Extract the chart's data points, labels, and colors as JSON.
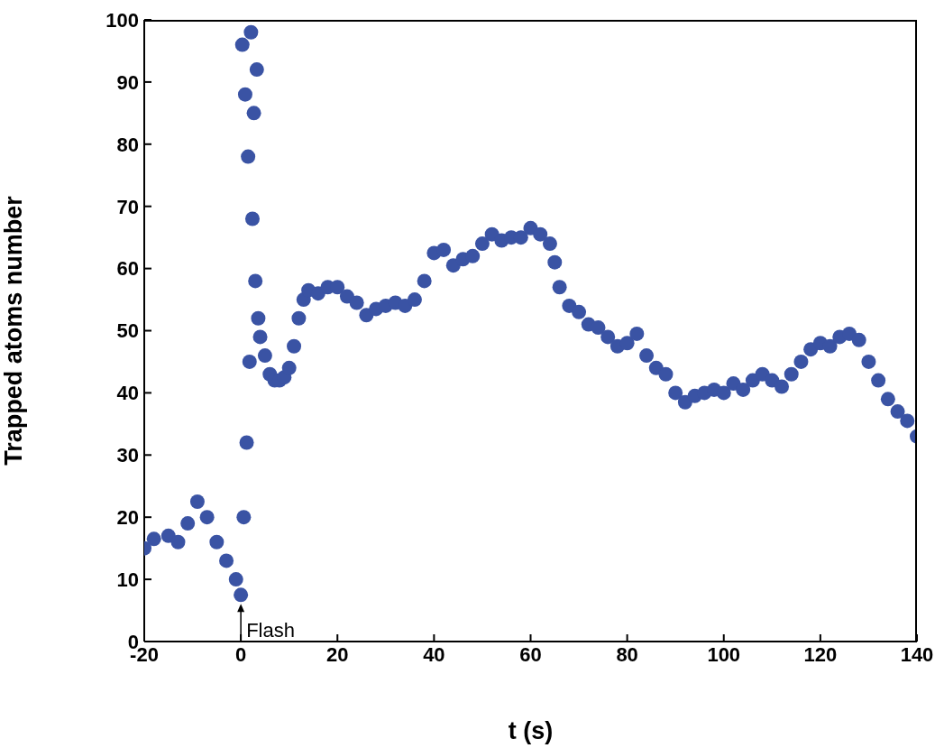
{
  "chart_data": {
    "type": "scatter",
    "xlabel": "t (s)",
    "ylabel": "Trapped atoms number",
    "xlim": [
      -20,
      140
    ],
    "xticks": [
      -20,
      0,
      20,
      40,
      60,
      80,
      100,
      120,
      140
    ],
    "ylim": [
      0,
      100
    ],
    "yticks": [
      0,
      10,
      20,
      30,
      40,
      50,
      60,
      70,
      80,
      90,
      100
    ],
    "marker": "circle",
    "grid": false,
    "legend": false,
    "annotations": [
      {
        "text": "Flash",
        "x": 0,
        "y": 7.5
      }
    ],
    "series": [
      {
        "color": "#3a53a4",
        "x": [
          -20,
          -18,
          -15,
          -13,
          -11,
          -9,
          -7,
          -5,
          -3,
          -1,
          0,
          0.3,
          0.6,
          0.9,
          1.2,
          1.5,
          1.8,
          2.1,
          2.4,
          2.7,
          3.0,
          3.3,
          3.6,
          4,
          5,
          6,
          7,
          8,
          9,
          10,
          11,
          12,
          13,
          14,
          16,
          18,
          20,
          22,
          24,
          26,
          28,
          30,
          32,
          34,
          36,
          38,
          40,
          42,
          44,
          46,
          48,
          50,
          52,
          54,
          56,
          58,
          60,
          62,
          64,
          65,
          66,
          68,
          70,
          72,
          74,
          76,
          78,
          80,
          82,
          84,
          86,
          88,
          90,
          92,
          94,
          96,
          98,
          100,
          102,
          104,
          106,
          108,
          110,
          112,
          114,
          116,
          118,
          120,
          122,
          124,
          126,
          128,
          130,
          132,
          134,
          136,
          138,
          140
        ],
        "values": [
          15,
          16.5,
          17,
          16,
          19,
          22.5,
          20,
          16,
          13,
          10,
          7.5,
          96,
          20,
          88,
          32,
          78,
          45,
          98,
          68,
          85,
          58,
          92,
          52,
          49,
          46,
          43,
          42,
          42,
          42.5,
          44,
          47.5,
          52,
          55,
          56.5,
          56,
          57,
          57,
          55.5,
          54.5,
          52.5,
          53.5,
          54,
          54.5,
          54,
          55,
          58,
          62.5,
          63,
          60.5,
          61.5,
          62,
          64,
          65.5,
          64.5,
          65,
          65,
          66.5,
          65.5,
          64,
          61,
          57,
          54,
          53,
          51,
          50.5,
          49,
          47.5,
          48,
          49.5,
          46,
          44,
          43,
          40,
          38.5,
          39.5,
          40,
          40.5,
          40,
          41.5,
          40.5,
          42,
          43,
          42,
          41,
          43,
          45,
          47,
          48,
          47.5,
          49,
          49.5,
          48.5,
          45,
          42,
          39,
          37,
          35.5,
          33
        ]
      }
    ]
  }
}
